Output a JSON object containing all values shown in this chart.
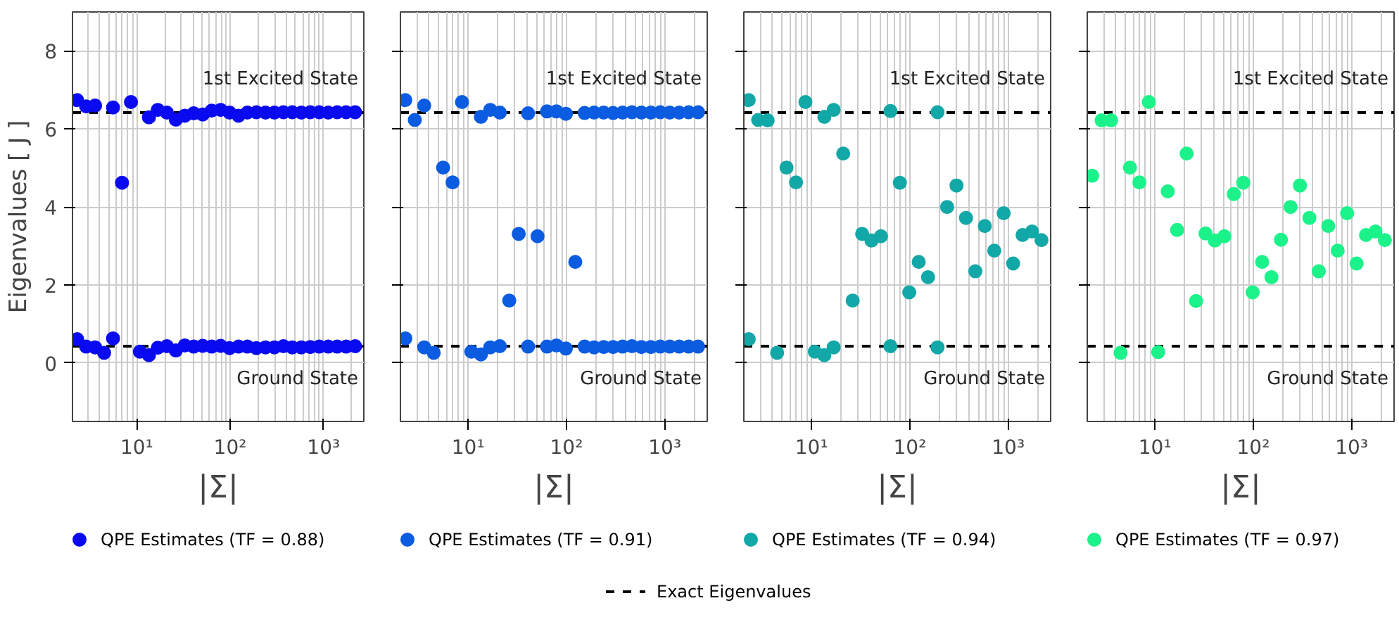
{
  "chart_data": [
    {
      "type": "scatter",
      "xlabel": "|Σ|",
      "ylabel": "Eigenvalues [ J ]",
      "log": "x",
      "grid": true,
      "marker": "circle",
      "legend": "bottom",
      "xlim": [
        2.05,
        2700
      ],
      "ylim": [
        -1.5,
        9
      ],
      "xticks": [
        {
          "value": 10,
          "label": "10¹"
        },
        {
          "value": 100,
          "label": "10²"
        },
        {
          "value": 1000,
          "label": "10³"
        }
      ],
      "yticks": [
        0,
        2,
        4,
        6,
        8
      ],
      "ref_lines": [
        {
          "axis": "y",
          "value": 6.42,
          "line_style": "dashed",
          "color": "#000000",
          "label": "1st Excited State"
        },
        {
          "axis": "y",
          "value": 0.43,
          "line_style": "dashed",
          "color": "#000000",
          "label": "Ground State"
        }
      ],
      "annotations": [
        "Exact Eigenvalues"
      ],
      "series": [
        {
          "name": "QPE Estimates (TF = 0.88)",
          "color": "#0a0af0",
          "x": [
            2.3,
            2.3,
            2.87,
            2.87,
            3.58,
            3.58,
            4.47,
            5.57,
            5.57,
            6.95,
            8.67,
            10.8,
            13.5,
            13.5,
            16.8,
            16.8,
            21.0,
            21.0,
            26.2,
            26.2,
            32.7,
            32.7,
            40.7,
            40.7,
            50.8,
            50.8,
            63.4,
            63.4,
            79.1,
            79.1,
            98.6,
            98.6,
            123,
            123,
            153,
            153,
            191,
            191,
            239,
            239,
            298,
            298,
            372,
            372,
            463,
            463,
            578,
            578,
            721,
            721,
            899,
            899,
            1122,
            1122,
            1400,
            1400,
            1746,
            1746,
            2178,
            2178
          ],
          "values": [
            6.74,
            0.61,
            6.58,
            0.42,
            6.6,
            0.4,
            0.26,
            6.55,
            0.63,
            4.62,
            6.69,
            0.29,
            6.3,
            0.2,
            6.49,
            0.39,
            6.42,
            0.43,
            6.24,
            0.32,
            6.34,
            0.45,
            6.4,
            0.42,
            6.37,
            0.44,
            6.47,
            0.42,
            6.49,
            0.44,
            6.42,
            0.38,
            6.34,
            0.42,
            6.42,
            0.42,
            6.43,
            0.38,
            6.42,
            0.4,
            6.42,
            0.4,
            6.43,
            0.43,
            6.43,
            0.4,
            6.42,
            0.4,
            6.43,
            0.41,
            6.43,
            0.42,
            6.42,
            0.42,
            6.43,
            0.42,
            6.43,
            0.42,
            6.43,
            0.43
          ]
        }
      ]
    },
    {
      "type": "scatter",
      "xlabel": "|Σ|",
      "log": "x",
      "grid": true,
      "marker": "circle",
      "legend": "bottom",
      "tick_labels": "x",
      "xlim": [
        2.05,
        2700
      ],
      "ylim": [
        -1.5,
        9
      ],
      "xticks": [
        {
          "value": 10,
          "label": "10¹"
        },
        {
          "value": 100,
          "label": "10²"
        },
        {
          "value": 1000,
          "label": "10³"
        }
      ],
      "yticks": [
        0,
        2,
        4,
        6,
        8
      ],
      "ref_lines": [
        {
          "axis": "y",
          "value": 6.42,
          "line_style": "dashed",
          "color": "#000000",
          "label": "1st Excited State"
        },
        {
          "axis": "y",
          "value": 0.43,
          "line_style": "dashed",
          "color": "#000000",
          "label": "Ground State"
        }
      ],
      "series": [
        {
          "name": "QPE Estimates (TF = 0.91)",
          "color": "#0b5ce1",
          "x": [
            2.3,
            2.3,
            2.87,
            3.58,
            3.58,
            4.47,
            5.57,
            6.95,
            8.67,
            10.8,
            13.5,
            13.5,
            16.8,
            16.8,
            21.0,
            21.0,
            26.2,
            32.7,
            40.7,
            40.7,
            50.8,
            63.4,
            63.4,
            79.1,
            79.1,
            98.6,
            98.6,
            123,
            153,
            153,
            191,
            191,
            239,
            239,
            298,
            298,
            372,
            372,
            463,
            463,
            578,
            578,
            721,
            721,
            899,
            899,
            1122,
            1122,
            1400,
            1400,
            1746,
            1746,
            2178,
            2178
          ],
          "values": [
            6.74,
            0.63,
            6.23,
            6.6,
            0.4,
            0.26,
            5.01,
            4.63,
            6.69,
            0.29,
            6.31,
            0.22,
            6.49,
            0.4,
            6.42,
            0.43,
            1.6,
            3.31,
            6.4,
            0.42,
            3.25,
            6.45,
            0.42,
            6.45,
            0.45,
            6.39,
            0.37,
            2.59,
            6.41,
            0.42,
            6.42,
            0.4,
            6.42,
            0.41,
            6.41,
            0.41,
            6.42,
            0.42,
            6.43,
            0.43,
            6.42,
            0.41,
            6.42,
            0.41,
            6.43,
            0.42,
            6.42,
            0.42,
            6.42,
            0.42,
            6.43,
            0.42,
            6.43,
            0.42
          ]
        }
      ]
    },
    {
      "type": "scatter",
      "xlabel": "|Σ|",
      "log": "x",
      "grid": true,
      "marker": "circle",
      "legend": "bottom",
      "tick_labels": "x",
      "xlim": [
        2.05,
        2700
      ],
      "ylim": [
        -1.5,
        9
      ],
      "xticks": [
        {
          "value": 10,
          "label": "10¹"
        },
        {
          "value": 100,
          "label": "10²"
        },
        {
          "value": 1000,
          "label": "10³"
        }
      ],
      "yticks": [
        0,
        2,
        4,
        6,
        8
      ],
      "ref_lines": [
        {
          "axis": "y",
          "value": 6.42,
          "line_style": "dashed",
          "color": "#000000",
          "label": "1st Excited State"
        },
        {
          "axis": "y",
          "value": 0.43,
          "line_style": "dashed",
          "color": "#000000",
          "label": "Ground State"
        }
      ],
      "series": [
        {
          "name": "QPE Estimates (TF = 0.94)",
          "color": "#13a8a8",
          "x": [
            2.3,
            2.3,
            2.87,
            3.58,
            4.47,
            5.57,
            6.95,
            8.67,
            10.8,
            13.5,
            13.5,
            16.8,
            16.8,
            21.0,
            26.2,
            32.7,
            40.7,
            50.8,
            63.4,
            63.4,
            79.1,
            98.6,
            123,
            153,
            191,
            191,
            239,
            298,
            372,
            463,
            578,
            721,
            899,
            1122,
            1400,
            1746,
            2178
          ],
          "values": [
            6.74,
            0.61,
            6.23,
            6.22,
            0.26,
            5.01,
            4.63,
            6.69,
            0.29,
            6.31,
            0.2,
            6.49,
            0.4,
            5.37,
            1.6,
            3.31,
            3.14,
            3.25,
            6.46,
            0.43,
            4.62,
            1.81,
            2.59,
            2.2,
            6.43,
            0.4,
            4.0,
            4.55,
            3.72,
            2.35,
            3.51,
            2.88,
            3.84,
            2.55,
            3.28,
            3.37,
            3.15
          ]
        }
      ]
    },
    {
      "type": "scatter",
      "xlabel": "|Σ|",
      "log": "x",
      "grid": true,
      "marker": "circle",
      "legend": "bottom",
      "tick_labels": "x",
      "xlim": [
        2.05,
        2700
      ],
      "ylim": [
        -1.5,
        9
      ],
      "xticks": [
        {
          "value": 10,
          "label": "10¹"
        },
        {
          "value": 100,
          "label": "10²"
        },
        {
          "value": 1000,
          "label": "10³"
        }
      ],
      "yticks": [
        0,
        2,
        4,
        6,
        8
      ],
      "ref_lines": [
        {
          "axis": "y",
          "value": 6.42,
          "line_style": "dashed",
          "color": "#000000",
          "label": "1st Excited State"
        },
        {
          "axis": "y",
          "value": 0.43,
          "line_style": "dashed",
          "color": "#000000",
          "label": "Ground State"
        }
      ],
      "series": [
        {
          "name": "QPE Estimates (TF = 0.97)",
          "color": "#1cf28a",
          "x": [
            2.3,
            2.87,
            3.58,
            4.47,
            5.57,
            6.95,
            8.67,
            10.8,
            13.5,
            16.8,
            21.0,
            26.2,
            32.7,
            40.7,
            50.8,
            63.4,
            79.1,
            98.6,
            123,
            153,
            191,
            239,
            298,
            372,
            463,
            578,
            721,
            899,
            1122,
            1400,
            1746,
            2178
          ],
          "values": [
            4.8,
            6.22,
            6.22,
            0.26,
            5.01,
            4.63,
            6.69,
            0.28,
            4.4,
            3.41,
            5.37,
            1.59,
            3.32,
            3.14,
            3.25,
            4.33,
            4.62,
            1.81,
            2.59,
            2.2,
            3.16,
            4.0,
            4.55,
            3.72,
            2.35,
            3.51,
            2.88,
            3.84,
            2.55,
            3.28,
            3.37,
            3.15
          ]
        }
      ]
    }
  ]
}
